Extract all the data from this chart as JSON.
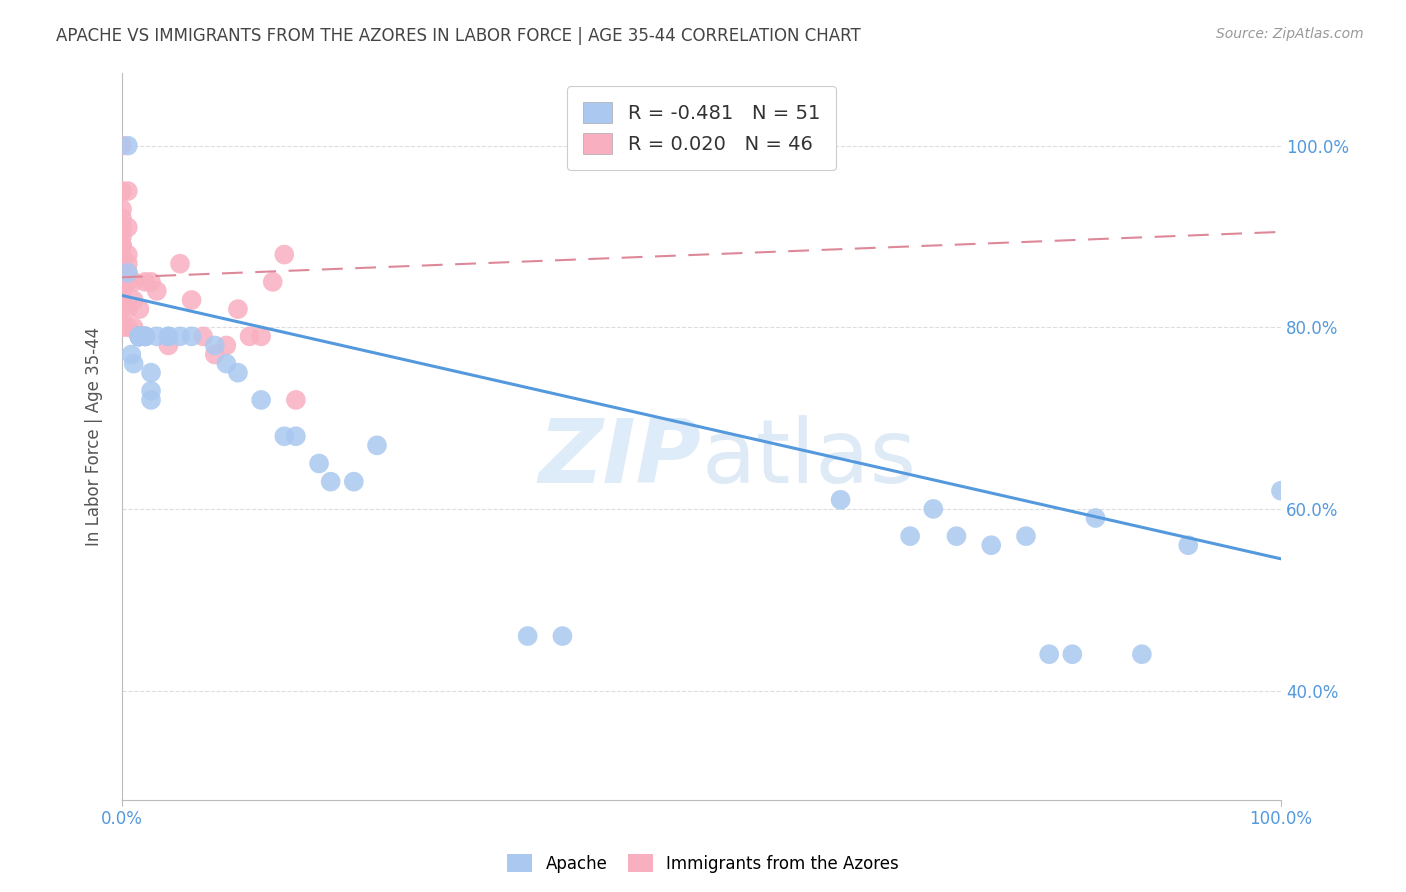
{
  "title": "APACHE VS IMMIGRANTS FROM THE AZORES IN LABOR FORCE | AGE 35-44 CORRELATION CHART",
  "source": "Source: ZipAtlas.com",
  "ylabel": "In Labor Force | Age 35-44",
  "apache_color": "#aac8f0",
  "azores_color": "#f8b0c0",
  "apache_R": "-0.481",
  "apache_N": "51",
  "azores_R": "0.020",
  "azores_N": "46",
  "apache_line_color": "#5599dd",
  "azores_line_color": "#dd8899",
  "watermark_zip": "ZIP",
  "watermark_atlas": "atlas",
  "background_color": "#ffffff",
  "grid_color": "#dddddd",
  "tick_color": "#5599dd",
  "title_color": "#444444",
  "ylabel_color": "#555555",
  "apache_scatter_x": [
    0.005,
    0.005,
    0.008,
    0.01,
    0.015,
    0.015,
    0.015,
    0.015,
    0.015,
    0.015,
    0.015,
    0.015,
    0.015,
    0.015,
    0.015,
    0.015,
    0.02,
    0.02,
    0.02,
    0.025,
    0.025,
    0.025,
    0.03,
    0.04,
    0.04,
    0.05,
    0.06,
    0.08,
    0.09,
    0.1,
    0.12,
    0.14,
    0.15,
    0.17,
    0.18,
    0.2,
    0.22,
    0.35,
    0.38,
    0.62,
    0.68,
    0.7,
    0.72,
    0.75,
    0.78,
    0.8,
    0.82,
    0.84,
    0.88,
    0.92,
    1.0
  ],
  "apache_scatter_y": [
    0.86,
    1.0,
    0.77,
    0.76,
    0.79,
    0.79,
    0.79,
    0.79,
    0.79,
    0.79,
    0.79,
    0.79,
    0.79,
    0.79,
    0.79,
    0.79,
    0.79,
    0.79,
    0.79,
    0.75,
    0.73,
    0.72,
    0.79,
    0.79,
    0.79,
    0.79,
    0.79,
    0.78,
    0.76,
    0.75,
    0.72,
    0.68,
    0.68,
    0.65,
    0.63,
    0.63,
    0.67,
    0.46,
    0.46,
    0.61,
    0.57,
    0.6,
    0.57,
    0.56,
    0.57,
    0.44,
    0.44,
    0.59,
    0.44,
    0.56,
    0.62
  ],
  "azores_scatter_x": [
    0.0,
    0.0,
    0.0,
    0.0,
    0.0,
    0.0,
    0.0,
    0.0,
    0.0,
    0.0,
    0.0,
    0.0,
    0.0,
    0.0,
    0.0,
    0.0,
    0.0,
    0.005,
    0.005,
    0.005,
    0.005,
    0.005,
    0.005,
    0.005,
    0.005,
    0.01,
    0.01,
    0.01,
    0.015,
    0.015,
    0.02,
    0.02,
    0.025,
    0.03,
    0.04,
    0.05,
    0.06,
    0.07,
    0.08,
    0.09,
    0.1,
    0.11,
    0.12,
    0.13,
    0.14,
    0.15
  ],
  "azores_scatter_y": [
    1.0,
    0.95,
    0.93,
    0.92,
    0.91,
    0.9,
    0.89,
    0.89,
    0.88,
    0.87,
    0.87,
    0.86,
    0.85,
    0.84,
    0.83,
    0.82,
    0.8,
    0.95,
    0.91,
    0.88,
    0.87,
    0.86,
    0.85,
    0.82,
    0.8,
    0.85,
    0.83,
    0.8,
    0.82,
    0.79,
    0.85,
    0.79,
    0.85,
    0.84,
    0.78,
    0.87,
    0.83,
    0.79,
    0.77,
    0.78,
    0.82,
    0.79,
    0.79,
    0.85,
    0.88,
    0.72
  ],
  "apache_line_x0": 0.0,
  "apache_line_x1": 1.0,
  "apache_line_y0": 0.835,
  "apache_line_y1": 0.545,
  "azores_line_x0": 0.0,
  "azores_line_x1": 1.0,
  "azores_line_y0": 0.855,
  "azores_line_y1": 0.905,
  "xlim": [
    0.0,
    1.0
  ],
  "ylim": [
    0.28,
    1.08
  ],
  "ytick_positions": [
    0.4,
    0.6,
    0.8,
    1.0
  ],
  "ytick_labels": [
    "40.0%",
    "60.0%",
    "80.0%",
    "100.0%"
  ],
  "xtick_positions": [
    0.0,
    1.0
  ],
  "xtick_labels": [
    "0.0%",
    "100.0%"
  ]
}
